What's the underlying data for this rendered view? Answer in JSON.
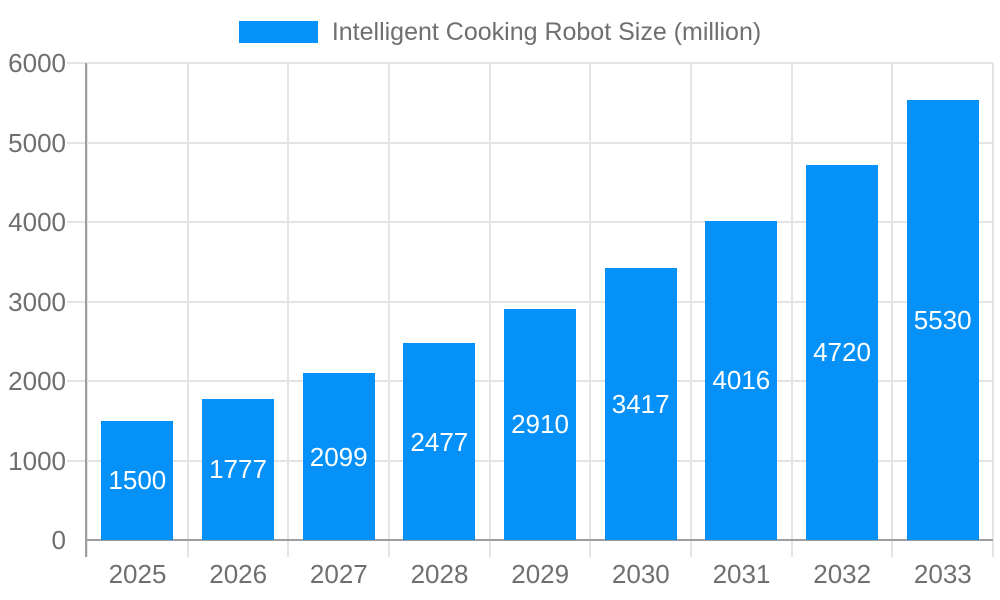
{
  "legend": {
    "items": [
      {
        "label": "Intelligent Cooking Robot Size (million)",
        "color": "#0591f8"
      }
    ]
  },
  "chart_data": {
    "type": "bar",
    "title": "",
    "categories": [
      "2025",
      "2026",
      "2027",
      "2028",
      "2029",
      "2030",
      "2031",
      "2032",
      "2033"
    ],
    "series": [
      {
        "name": "Intelligent Cooking Robot Size (million)",
        "values": [
          1500,
          1777,
          2099,
          2477,
          2910,
          3417,
          4016,
          4720,
          5530
        ]
      }
    ],
    "xlabel": "",
    "ylabel": "",
    "ylim": [
      0,
      6000
    ],
    "yticks": [
      0,
      1000,
      2000,
      3000,
      4000,
      5000,
      6000
    ],
    "grid": true,
    "legend_position": "top-center",
    "colors": {
      "bar": "#0591f8",
      "value_label": "#ffffff",
      "axis_text": "#6f6f6f",
      "grid_line": "#e4e4e4",
      "axis_line": "#9e9e9e"
    }
  }
}
